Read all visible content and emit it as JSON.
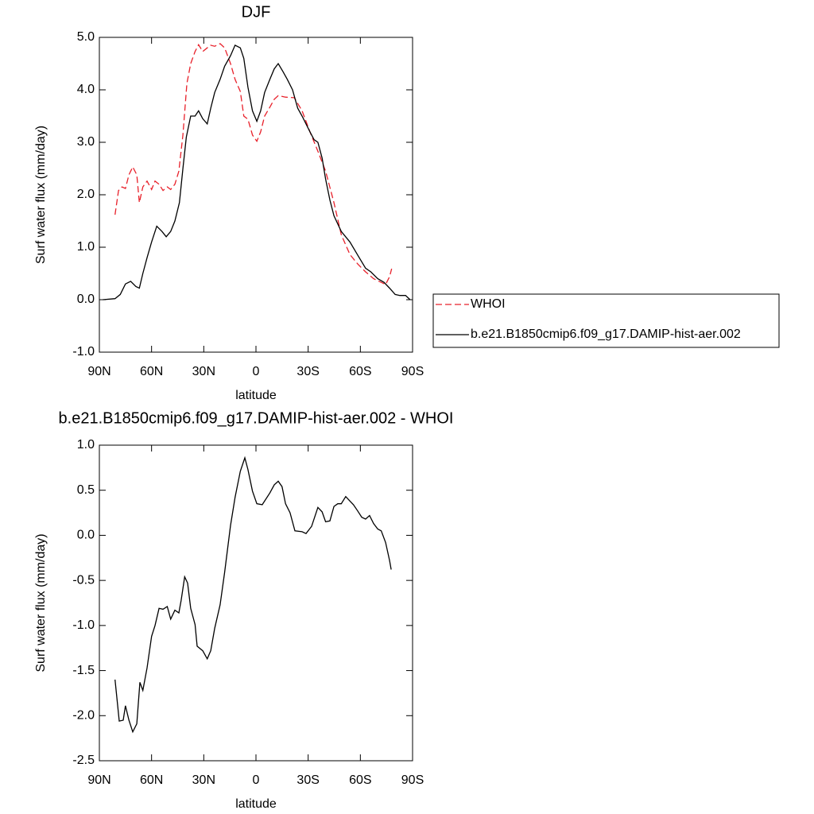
{
  "chart_data": [
    {
      "type": "line",
      "title": "DJF",
      "xlabel": "latitude",
      "ylabel": "Surf water flux (mm/day)",
      "xlim": [
        90,
        -90
      ],
      "ylim": [
        -1.0,
        5.0
      ],
      "xticks": [
        {
          "value": 90,
          "label": "90N"
        },
        {
          "value": 60,
          "label": "60N"
        },
        {
          "value": 30,
          "label": "30N"
        },
        0,
        {
          "value": -30,
          "label": "30S"
        },
        {
          "value": -60,
          "label": "60S"
        },
        {
          "value": -90,
          "label": "90S"
        }
      ],
      "yticks": [
        {
          "value": -1.0,
          "label": "-1.0"
        },
        {
          "value": 0.0,
          "label": "0.0"
        },
        {
          "value": 1.0,
          "label": "1.0"
        },
        {
          "value": 2.0,
          "label": "2.0"
        },
        {
          "value": 3.0,
          "label": "3.0"
        },
        {
          "value": 4.0,
          "label": "4.0"
        },
        {
          "value": 5.0,
          "label": "5.0"
        }
      ],
      "legend": "outside right",
      "series": [
        {
          "name": "WHOI",
          "color": "#e8202a",
          "line_style": "dashed",
          "x": [
            81,
            79,
            77,
            75,
            73,
            70.8,
            68.5,
            67,
            65,
            62.6,
            60,
            58,
            55.7,
            53.4,
            51,
            49,
            46.6,
            44.3,
            42,
            39.7,
            37.5,
            35,
            33,
            30.6,
            28,
            26,
            23.7,
            20.6,
            18,
            14.6,
            12,
            9,
            7,
            4.6,
            2,
            -0.5,
            -2.7,
            -5,
            -8,
            -10.5,
            -12.8,
            -17,
            -22,
            -26.5,
            -31,
            -35.6,
            -40,
            -44.8,
            -49,
            -54,
            -58.5,
            -63,
            -67.6,
            -72,
            -74.5,
            -76.8,
            -78
          ],
          "values": [
            1.62,
            2.08,
            2.15,
            2.12,
            2.38,
            2.53,
            2.38,
            1.85,
            2.15,
            2.26,
            2.1,
            2.26,
            2.2,
            2.08,
            2.15,
            2.1,
            2.2,
            2.45,
            3.14,
            4.12,
            4.5,
            4.73,
            4.86,
            4.73,
            4.8,
            4.85,
            4.83,
            4.88,
            4.8,
            4.5,
            4.2,
            3.97,
            3.5,
            3.44,
            3.14,
            3.02,
            3.2,
            3.5,
            3.67,
            3.82,
            3.89,
            3.86,
            3.85,
            3.6,
            3.2,
            2.83,
            2.45,
            1.85,
            1.24,
            0.86,
            0.68,
            0.53,
            0.4,
            0.33,
            0.29,
            0.44,
            0.59
          ]
        },
        {
          "name": "b.e21.B1850cmip6.f09_g17.DAMIP-hist-aer.002",
          "color": "#000000",
          "line_style": "solid",
          "x": [
            88,
            81,
            78,
            75,
            72,
            69,
            67,
            65,
            62.6,
            60,
            57,
            54,
            51.6,
            49,
            46.6,
            44,
            42,
            40,
            37.5,
            35,
            33,
            30.6,
            28,
            26,
            23.7,
            20.6,
            18,
            14.6,
            12,
            9,
            7,
            4.6,
            2,
            -0.5,
            -2.7,
            -5,
            -8,
            -10.5,
            -12.8,
            -15.5,
            -18,
            -21,
            -24,
            -26.5,
            -28.8,
            -31,
            -33.4,
            -35.6,
            -38,
            -40,
            -42.5,
            -44.8,
            -49,
            -54,
            -58.5,
            -63,
            -66,
            -70,
            -73.6,
            -76.8,
            -80,
            -82.7,
            -86,
            -88.6
          ],
          "values": [
            0.0,
            0.02,
            0.1,
            0.3,
            0.35,
            0.25,
            0.22,
            0.5,
            0.8,
            1.1,
            1.4,
            1.3,
            1.2,
            1.3,
            1.5,
            1.85,
            2.5,
            3.1,
            3.5,
            3.5,
            3.6,
            3.45,
            3.35,
            3.65,
            3.95,
            4.2,
            4.45,
            4.65,
            4.85,
            4.8,
            4.6,
            4.05,
            3.6,
            3.4,
            3.6,
            3.95,
            4.2,
            4.4,
            4.5,
            4.35,
            4.2,
            4.0,
            3.65,
            3.5,
            3.35,
            3.2,
            3.05,
            3.0,
            2.7,
            2.3,
            1.9,
            1.6,
            1.3,
            1.1,
            0.85,
            0.6,
            0.53,
            0.4,
            0.33,
            0.22,
            0.1,
            0.08,
            0.08,
            0.0
          ]
        }
      ]
    },
    {
      "type": "line",
      "title": "b.e21.B1850cmip6.f09_g17.DAMIP-hist-aer.002 - WHOI",
      "xlabel": "latitude",
      "ylabel": "Surf water flux (mm/day)",
      "xlim": [
        90,
        -90
      ],
      "ylim": [
        -2.5,
        1.0
      ],
      "xticks": [
        {
          "value": 90,
          "label": "90N"
        },
        {
          "value": 60,
          "label": "60N"
        },
        {
          "value": 30,
          "label": "30N"
        },
        0,
        {
          "value": -30,
          "label": "30S"
        },
        {
          "value": -60,
          "label": "60S"
        },
        {
          "value": -90,
          "label": "90S"
        }
      ],
      "yticks": [
        {
          "value": -2.5,
          "label": "-2.5"
        },
        {
          "value": -2.0,
          "label": "-2.0"
        },
        {
          "value": -1.5,
          "label": "-1.5"
        },
        {
          "value": -1.0,
          "label": "-1.0"
        },
        {
          "value": -0.5,
          "label": "-0.5"
        },
        {
          "value": 0.0,
          "label": "0.0"
        },
        {
          "value": 0.5,
          "label": "0.5"
        },
        {
          "value": 1.0,
          "label": "1.0"
        }
      ],
      "color": "#000000",
      "x": [
        81,
        78.6,
        76.3,
        75,
        73,
        70.8,
        68.5,
        66.7,
        65,
        62.6,
        60,
        58,
        55.7,
        53.4,
        51,
        49,
        46.6,
        44.3,
        43,
        41,
        39.3,
        37.5,
        35,
        33.8,
        30.6,
        28,
        26,
        23.7,
        20.6,
        18,
        14.6,
        12,
        9,
        6.4,
        4.6,
        2,
        -0.5,
        -3.6,
        -8,
        -10.5,
        -12.8,
        -15,
        -17,
        -19.6,
        -22.4,
        -26.5,
        -28.8,
        -32,
        -35.6,
        -38,
        -40,
        -42.5,
        -44.8,
        -47,
        -49,
        -51.6,
        -54,
        -56,
        -58.5,
        -60.8,
        -63,
        -65.3,
        -67.6,
        -70,
        -72,
        -74.5,
        -76.8,
        -77.7
      ],
      "values": [
        -1.6,
        -2.06,
        -2.05,
        -1.89,
        -2.05,
        -2.18,
        -2.09,
        -1.63,
        -1.72,
        -1.47,
        -1.12,
        -1.0,
        -0.81,
        -0.82,
        -0.79,
        -0.93,
        -0.83,
        -0.86,
        -0.72,
        -0.46,
        -0.53,
        -0.81,
        -0.99,
        -1.23,
        -1.28,
        -1.37,
        -1.28,
        -1.03,
        -0.77,
        -0.41,
        0.11,
        0.42,
        0.71,
        0.86,
        0.73,
        0.49,
        0.35,
        0.34,
        0.47,
        0.56,
        0.6,
        0.54,
        0.35,
        0.25,
        0.05,
        0.04,
        0.02,
        0.1,
        0.31,
        0.26,
        0.15,
        0.16,
        0.32,
        0.35,
        0.35,
        0.43,
        0.38,
        0.34,
        0.27,
        0.2,
        0.18,
        0.22,
        0.13,
        0.07,
        0.05,
        -0.08,
        -0.28,
        -0.38
      ]
    }
  ]
}
